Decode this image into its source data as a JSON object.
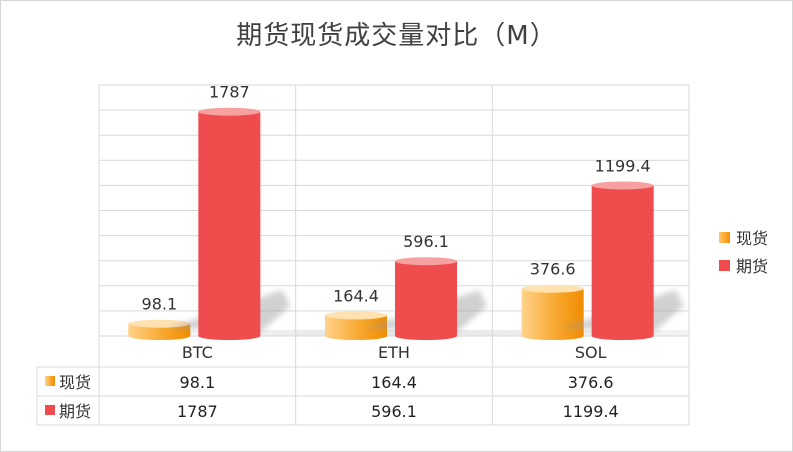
{
  "chart_data": {
    "type": "bar",
    "title": "期货现货成交量对比（M）",
    "categories": [
      "BTC",
      "ETH",
      "SOL"
    ],
    "series": [
      {
        "name": "现货",
        "values": [
          98.1,
          164.4,
          376.6
        ],
        "labels": [
          "98.1",
          "164.4",
          "376.6"
        ],
        "color": "#f49200"
      },
      {
        "name": "期货",
        "values": [
          1787,
          596.1,
          1199.4
        ],
        "labels": [
          "1787",
          "596.1",
          "1199.4"
        ],
        "color": "#ef4d4d"
      }
    ],
    "ylim": [
      0,
      2000
    ],
    "grid": true,
    "legend": "right",
    "data_table": true,
    "style": "3d-cylinder"
  }
}
